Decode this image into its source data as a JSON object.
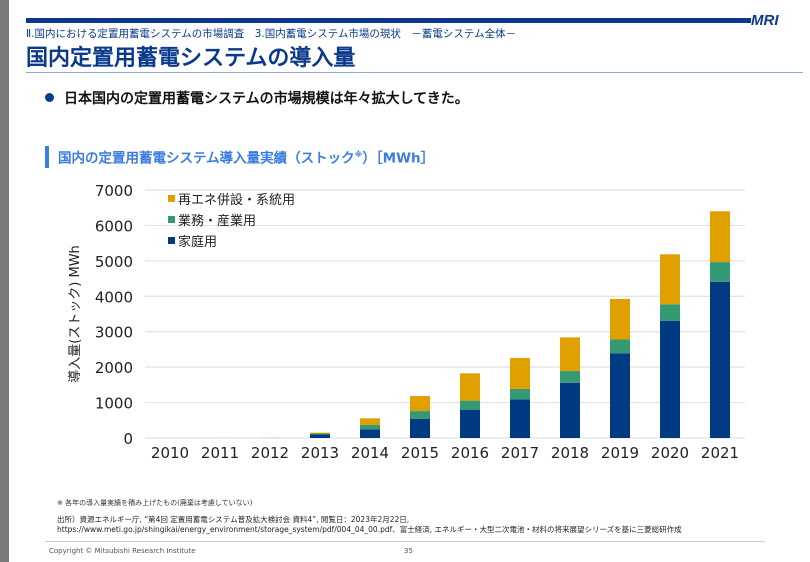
{
  "header": {
    "logo": "MRI",
    "breadcrumb": "Ⅱ.国内における定置用蓄電システムの市場調査　3.国内蓄電システム市場の現状　－蓄電システム全体－",
    "title": "国内定置用蓄電システムの導入量"
  },
  "bullet": "日本国内の定置用蓄電システムの市場規模は年々拡大してきた。",
  "chart_heading": {
    "text": "国内の定置用蓄電システム導入量実績（ストック",
    "superscript": "※",
    "suffix": "）［MWh］"
  },
  "chart_data": {
    "type": "bar",
    "stacked": true,
    "title": "国内の定置用蓄電システム導入量実績（ストック※）［MWh］",
    "xlabel": "",
    "ylabel": "導入量(ストック) MWh",
    "ylim": [
      0,
      7000
    ],
    "yticks": [
      0,
      1000,
      2000,
      3000,
      4000,
      5000,
      6000,
      7000
    ],
    "grid": true,
    "legend_position": "top-left",
    "categories": [
      "2010",
      "2011",
      "2012",
      "2013",
      "2014",
      "2015",
      "2016",
      "2017",
      "2018",
      "2019",
      "2020",
      "2021"
    ],
    "series": [
      {
        "name": "家庭用",
        "color": "#003a82",
        "values": [
          0,
          0,
          0,
          100,
          245,
          545,
          790,
          1090,
          1560,
          2390,
          3310,
          4410
        ]
      },
      {
        "name": "業務・産業用",
        "color": "#339a74",
        "values": [
          0,
          0,
          0,
          30,
          125,
          215,
          265,
          295,
          330,
          390,
          465,
          555
        ]
      },
      {
        "name": "再エネ併設・系統用",
        "color": "#dfa000",
        "values": [
          0,
          20,
          25,
          20,
          185,
          425,
          770,
          875,
          950,
          1145,
          1410,
          1435
        ]
      }
    ],
    "faint_bar_color": "#e9dfc8",
    "legend_order": [
      "再エネ併設・系統用",
      "業務・産業用",
      "家庭用"
    ]
  },
  "footnote": "※ 各年の導入量実績を積み上げたもの(廃棄は考慮していない)",
  "source_lines": [
    "出所）資源エネルギー庁, “第4回 定置用蓄電システム普及拡大検討会 資料4”, 閲覧日：2023年2月22日,",
    "https://www.meti.go.jp/shingikai/energy_environment/storage_system/pdf/004_04_00.pdf、富士経済, エネルギー・大型二次電池・材料の将来展望シリーズを基に三菱総研作成"
  ],
  "footer": {
    "copyright": "Copyright © Mitsubishi Research Institute",
    "page": "35"
  }
}
